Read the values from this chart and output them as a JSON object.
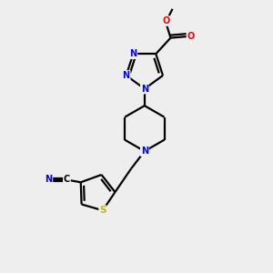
{
  "bg_color": "#eeeeee",
  "atom_colors": {
    "N": "#0000ff",
    "O": "#ff0000",
    "S": "#bbbb00",
    "C": "#000000",
    "default": "#000000"
  },
  "bond_color": "#000000",
  "bond_width": 1.6,
  "figsize": [
    3.0,
    3.0
  ],
  "dpi": 100,
  "xlim": [
    0,
    10
  ],
  "ylim": [
    0,
    10
  ]
}
